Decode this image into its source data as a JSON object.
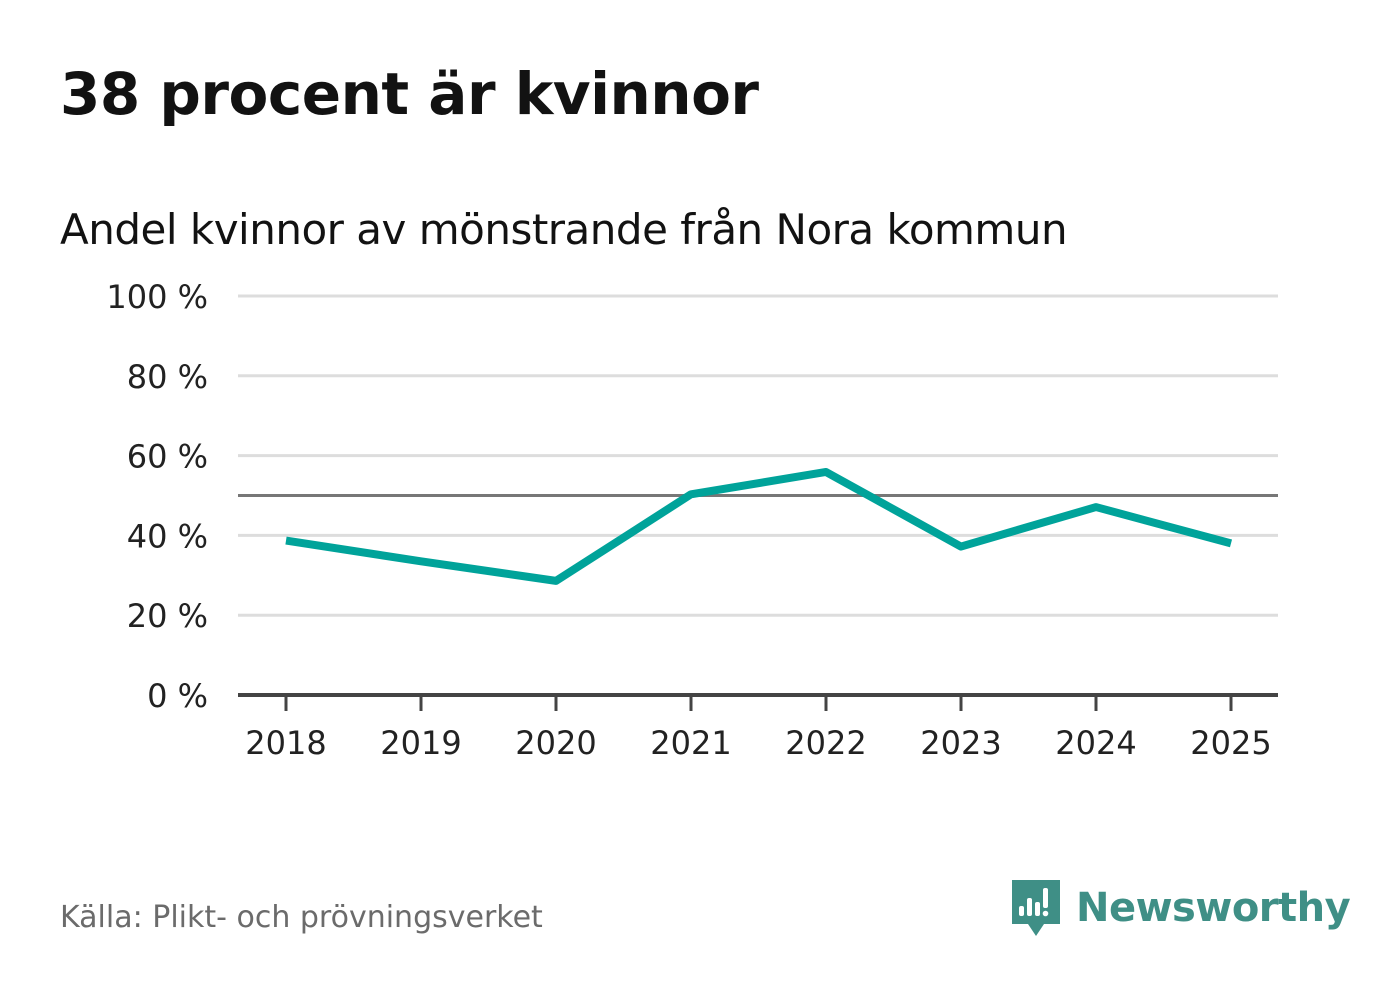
{
  "title": "38 procent är kvinnor",
  "subtitle": "Andel kvinnor av mönstrande från Nora kommun",
  "source": "Källa: Plikt- och prövningsverket",
  "brand": {
    "name": "Newsworthy",
    "icon": "newsworthy-logo-icon",
    "color": "#3f8f86"
  },
  "colors": {
    "line": "#00a39a",
    "grid": "#dddddd",
    "reference": "#777777",
    "axis": "#444444"
  },
  "chart_data": {
    "type": "line",
    "title": "Andel kvinnor av mönstrande från Nora kommun",
    "xlabel": "",
    "ylabel": "",
    "categories": [
      "2018",
      "2019",
      "2020",
      "2021",
      "2022",
      "2023",
      "2024",
      "2025"
    ],
    "series": [
      {
        "name": "Andel kvinnor",
        "values": [
          38.7,
          33.5,
          28.6,
          50.3,
          55.9,
          37.2,
          47.1,
          38.0
        ]
      }
    ],
    "ylim": [
      0,
      100
    ],
    "yticks": [
      0,
      20,
      40,
      60,
      80,
      100
    ],
    "ytick_labels": [
      "0 %",
      "20 %",
      "40 %",
      "60 %",
      "80 %",
      "100 %"
    ],
    "reference_line": 50,
    "grid": true,
    "legend": "none"
  }
}
